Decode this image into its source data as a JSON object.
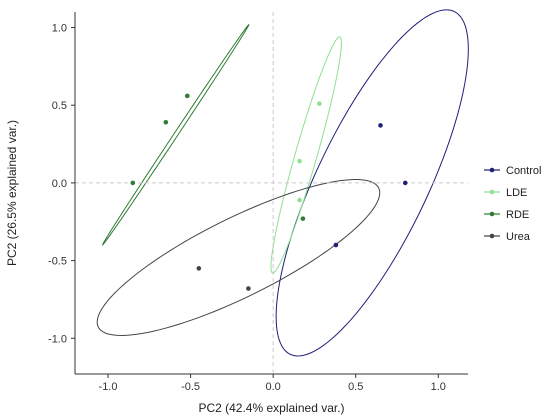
{
  "chart_data": {
    "type": "scatter",
    "title": "",
    "xlabel": "PC2 (42.4% explained var.)",
    "ylabel": "PC2 (26.5% explained var.)",
    "xlim": [
      -1.2,
      1.18
    ],
    "ylim": [
      -1.23,
      1.1
    ],
    "x_ticks": [
      -1.0,
      -0.5,
      0.0,
      0.5,
      1.0
    ],
    "x_tick_labels": [
      "-1.0",
      "-0.5",
      "0.0",
      "0.5",
      "1.0"
    ],
    "y_ticks": [
      -1.0,
      -0.5,
      0.0,
      0.5,
      1.0
    ],
    "y_tick_labels": [
      "-1.0",
      "-0.5",
      "0.0",
      "0.5",
      "1.0"
    ],
    "reference_lines": {
      "x": 0,
      "y": 0,
      "style": "dashed"
    },
    "grid": false,
    "legend": {
      "position": "right"
    },
    "series": [
      {
        "name": "Control",
        "color": "#1f1f7a",
        "points": [
          [
            0.65,
            0.37
          ],
          [
            0.8,
            0.0
          ],
          [
            0.38,
            -0.4
          ]
        ],
        "ellipse": {
          "center": [
            0.6,
            0.0
          ],
          "semi_major": 1.21,
          "semi_minor": 0.34,
          "angle_deg": 66
        }
      },
      {
        "name": "LDE",
        "color": "#90e090",
        "points": [
          [
            0.28,
            0.51
          ],
          [
            0.16,
            0.14
          ],
          [
            0.16,
            -0.11
          ]
        ],
        "ellipse": {
          "center": [
            0.2,
            0.18
          ],
          "semi_major": 0.787,
          "semi_minor": 0.066,
          "angle_deg": 75
        }
      },
      {
        "name": "RDE",
        "color": "#2e7d32",
        "points": [
          [
            -0.52,
            0.56
          ],
          [
            -0.65,
            0.39
          ],
          [
            -0.85,
            0.0
          ],
          [
            0.18,
            -0.23
          ]
        ],
        "ellipse": {
          "center": [
            -0.59,
            0.31
          ],
          "semi_major": 0.835,
          "semi_minor": 0.012,
          "angle_deg": 58
        }
      },
      {
        "name": "Urea",
        "color": "#444444",
        "points": [
          [
            -0.45,
            -0.55
          ],
          [
            -0.15,
            -0.68
          ]
        ],
        "ellipse": {
          "center": [
            -0.21,
            -0.48
          ],
          "semi_major": 0.96,
          "semi_minor": 0.25,
          "angle_deg": 28
        }
      }
    ]
  }
}
